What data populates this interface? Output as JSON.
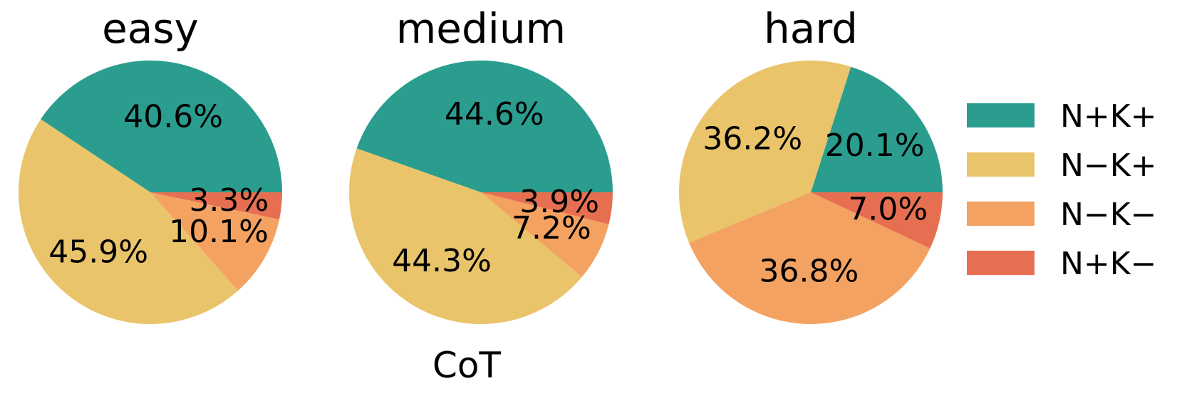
{
  "chart_data": {
    "type": "pie",
    "xlabel": "CoT",
    "legend": {
      "placement": "right",
      "entries": [
        {
          "label": "N+K+",
          "color": "#2a9d8f"
        },
        {
          "label": "N−K+",
          "color": "#e9c46a"
        },
        {
          "label": "N−K−",
          "color": "#f4a261"
        },
        {
          "label": "N+K−",
          "color": "#e76f51"
        }
      ]
    },
    "charts": [
      {
        "title": "easy",
        "slices": [
          {
            "category": "N+K+",
            "value": 40.6,
            "label": "40.6%"
          },
          {
            "category": "N−K+",
            "value": 45.9,
            "label": "45.9%"
          },
          {
            "category": "N−K−",
            "value": 10.1,
            "label": "10.1%"
          },
          {
            "category": "N+K−",
            "value": 3.3,
            "label": "3.3%"
          }
        ]
      },
      {
        "title": "medium",
        "slices": [
          {
            "category": "N+K+",
            "value": 44.6,
            "label": "44.6%"
          },
          {
            "category": "N−K+",
            "value": 44.3,
            "label": "44.3%"
          },
          {
            "category": "N−K−",
            "value": 7.2,
            "label": "7.2%"
          },
          {
            "category": "N+K−",
            "value": 3.9,
            "label": "3.9%"
          }
        ]
      },
      {
        "title": "hard",
        "slices": [
          {
            "category": "N+K+",
            "value": 20.1,
            "label": "20.1%"
          },
          {
            "category": "N−K+",
            "value": 36.2,
            "label": "36.2%"
          },
          {
            "category": "N−K−",
            "value": 36.8,
            "label": "36.8%"
          },
          {
            "category": "N+K−",
            "value": 7.0,
            "label": "7.0%"
          }
        ]
      }
    ]
  }
}
